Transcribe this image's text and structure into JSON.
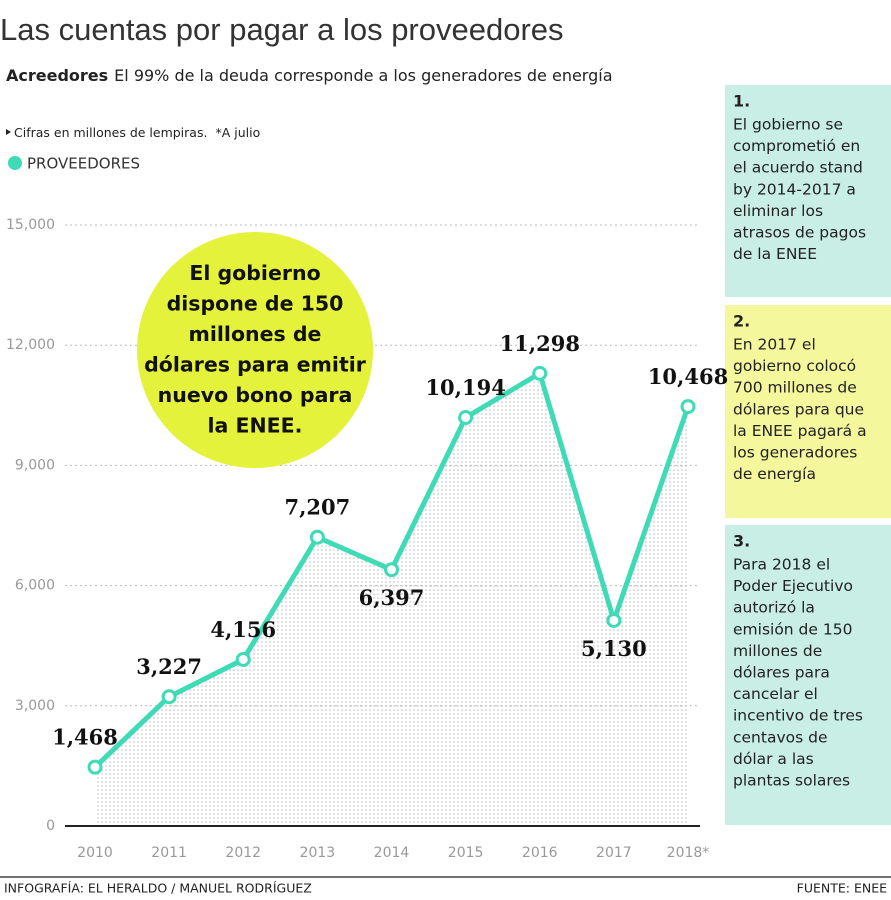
{
  "title": "Las cuentas por pagar a los proveedores",
  "subtitle": {
    "bold": "Acreedores",
    "text": "El  99% de la deuda corresponde a los generadores de energía"
  },
  "note": {
    "text": "Cifras en millones de lempiras.",
    "asterisk": "*A julio"
  },
  "chart_data": {
    "type": "line",
    "categories": [
      "2010",
      "2011",
      "2012",
      "2013",
      "2014",
      "2015",
      "2016",
      "2017",
      "2018*"
    ],
    "series": [
      {
        "name": "PROVEEDORES",
        "color": "#3edbb6",
        "values": [
          1468,
          3227,
          4156,
          7207,
          6397,
          10194,
          11298,
          5130,
          10468
        ],
        "value_labels": [
          "1,468",
          "3,227",
          "4,156",
          "7,207",
          "6,397",
          "10,194",
          "11,298",
          "5,130",
          "10,468"
        ]
      }
    ],
    "ylim": [
      0,
      15000
    ],
    "yticks": [
      0,
      {
        "value": 3000,
        "label": "3,000"
      },
      {
        "value": 6000,
        "label": "6,000"
      },
      {
        "value": 9000,
        "label": "9,000"
      },
      {
        "value": 12000,
        "label": "12,000"
      },
      {
        "value": 15000,
        "label": "15,000"
      }
    ],
    "grid": true
  },
  "annotation": {
    "lines": [
      "El gobierno",
      "dispone de 150",
      "millones de",
      "dólares para emitir",
      "nuevo bono para",
      "la ENEE."
    ]
  },
  "sidebar": [
    {
      "number": "1.",
      "lines": [
        "El gobierno se",
        "comprometió en",
        "el acuerdo stand",
        "by 2014-2017 a",
        "eliminar los",
        "atrasos de pagos",
        "de la ENEE"
      ]
    },
    {
      "number": "2.",
      "lines": [
        "En 2017 el",
        "gobierno colocó",
        "700 millones de",
        "dólares para que",
        "la ENEE pagará a",
        "los generadores",
        "de energía"
      ]
    },
    {
      "number": "3.",
      "lines": [
        "Para 2018 el",
        "Poder Ejecutivo",
        "autorizó la",
        "emisión de 150",
        "millones de",
        "dólares para",
        "cancelar el",
        "incentivo de tres",
        "centavos de",
        "dólar a las",
        "plantas solares"
      ]
    }
  ],
  "footer": {
    "credit": "INFOGRAFÍA: EL HERALDO / MANUEL RODRÍGUEZ",
    "source": "FUENTE: ENEE"
  }
}
